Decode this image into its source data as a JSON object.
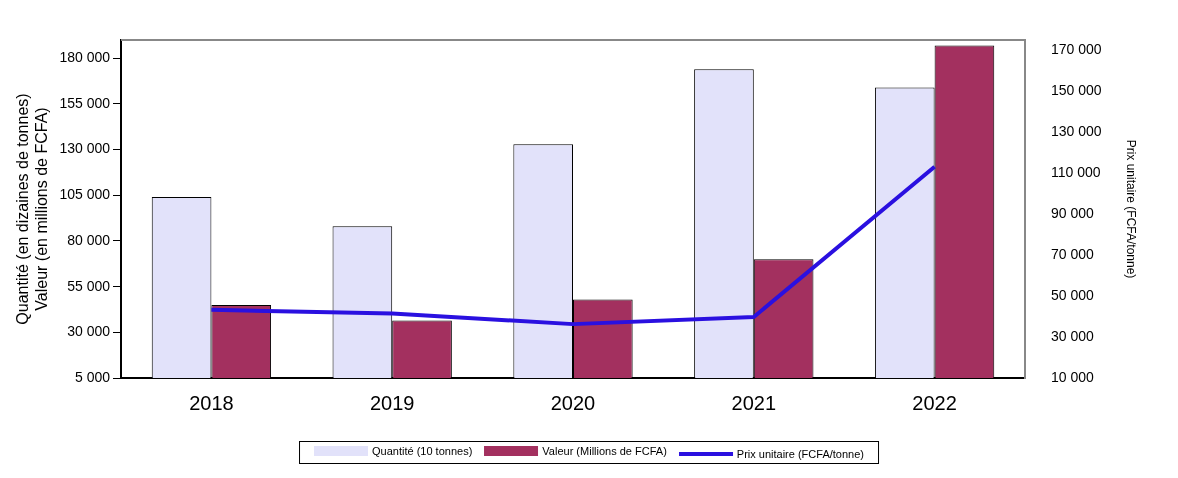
{
  "chart_data": {
    "type": "bar",
    "categories": [
      "2018",
      "2019",
      "2020",
      "2021",
      "2022"
    ],
    "ylabel": "Quantité (en dizaines de tonnes)\nValeur (en millions de FCFA)",
    "y2label": "Prix unitaire (FCFA/tonne)",
    "series": [
      {
        "name": "Quantité (10 tonnes)",
        "color": "#e2e2fa",
        "values": [
          104000,
          88000,
          133000,
          174000,
          164000
        ]
      },
      {
        "name": "Valeur (Millions de FCFA)",
        "color": "#a3305f",
        "values": [
          45000,
          36500,
          48000,
          70000,
          187000
        ]
      },
      {
        "name": "Prix unitaire (FCFA/tonne)",
        "type": "line",
        "axis": "y2",
        "color": "#2a10e0",
        "values": [
          43300,
          41500,
          36300,
          39800,
          113100
        ]
      }
    ],
    "ylim": [
      5000,
      190000
    ],
    "yticks": [
      {
        "value": 5000,
        "label": "5 000"
      },
      {
        "value": 30000,
        "label": "30 000"
      },
      {
        "value": 55000,
        "label": "55 000"
      },
      {
        "value": 80000,
        "label": "80 000"
      },
      {
        "value": 105000,
        "label": "105 000"
      },
      {
        "value": 130000,
        "label": "130 000"
      },
      {
        "value": 155000,
        "label": "155 000"
      },
      {
        "value": 180000,
        "label": "180 000"
      }
    ],
    "y2lim": [
      10000,
      175000
    ],
    "y2ticks": [
      {
        "value": 10000,
        "label": "10 000"
      },
      {
        "value": 30000,
        "label": "30 000"
      },
      {
        "value": 50000,
        "label": "50 000"
      },
      {
        "value": 70000,
        "label": "70 000"
      },
      {
        "value": 90000,
        "label": "90 000"
      },
      {
        "value": 110000,
        "label": "110 000"
      },
      {
        "value": 130000,
        "label": "130 000"
      },
      {
        "value": 150000,
        "label": "150 000"
      },
      {
        "value": 170000,
        "label": "170 000"
      }
    ],
    "grid": false,
    "legend": "bottom",
    "marker": "none",
    "line_style": "solid"
  }
}
